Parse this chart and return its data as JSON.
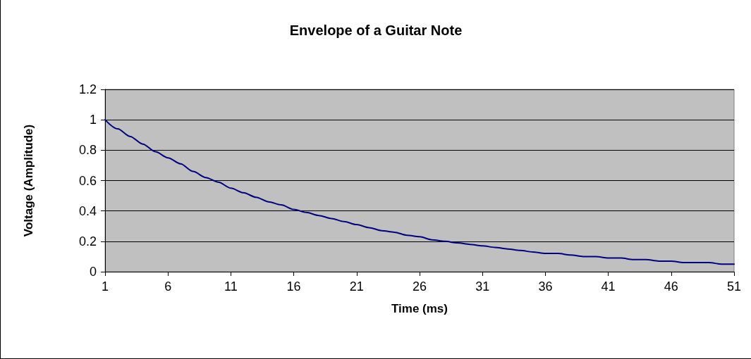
{
  "chart_data": {
    "type": "line",
    "title": "Envelope of a Guitar Note",
    "xlabel": "Time (ms)",
    "ylabel": "Voltage (Amplitude)",
    "x": [
      1,
      2,
      3,
      4,
      5,
      6,
      7,
      8,
      9,
      10,
      11,
      12,
      13,
      14,
      15,
      16,
      17,
      18,
      19,
      20,
      21,
      22,
      23,
      24,
      25,
      26,
      27,
      28,
      29,
      30,
      31,
      32,
      33,
      34,
      35,
      36,
      37,
      38,
      39,
      40,
      41,
      42,
      43,
      44,
      45,
      46,
      47,
      48,
      49,
      50,
      51
    ],
    "series": [
      {
        "color": "#000080",
        "values": [
          1.0,
          0.94,
          0.89,
          0.84,
          0.79,
          0.75,
          0.71,
          0.66,
          0.62,
          0.59,
          0.55,
          0.52,
          0.49,
          0.46,
          0.44,
          0.41,
          0.39,
          0.37,
          0.35,
          0.33,
          0.31,
          0.29,
          0.27,
          0.26,
          0.24,
          0.23,
          0.21,
          0.2,
          0.19,
          0.18,
          0.17,
          0.16,
          0.15,
          0.14,
          0.13,
          0.12,
          0.12,
          0.11,
          0.1,
          0.1,
          0.09,
          0.09,
          0.08,
          0.08,
          0.07,
          0.07,
          0.06,
          0.06,
          0.06,
          0.05,
          0.05
        ]
      }
    ],
    "xlim": [
      1,
      51
    ],
    "xticks": [
      1,
      6,
      11,
      16,
      21,
      26,
      31,
      36,
      41,
      46,
      51
    ],
    "ylim": [
      0,
      1.2
    ],
    "yticks": [
      0,
      0.2,
      0.4,
      0.6,
      0.8,
      1,
      1.2
    ],
    "grid": "y",
    "marker": "none",
    "line_style": "solid"
  }
}
